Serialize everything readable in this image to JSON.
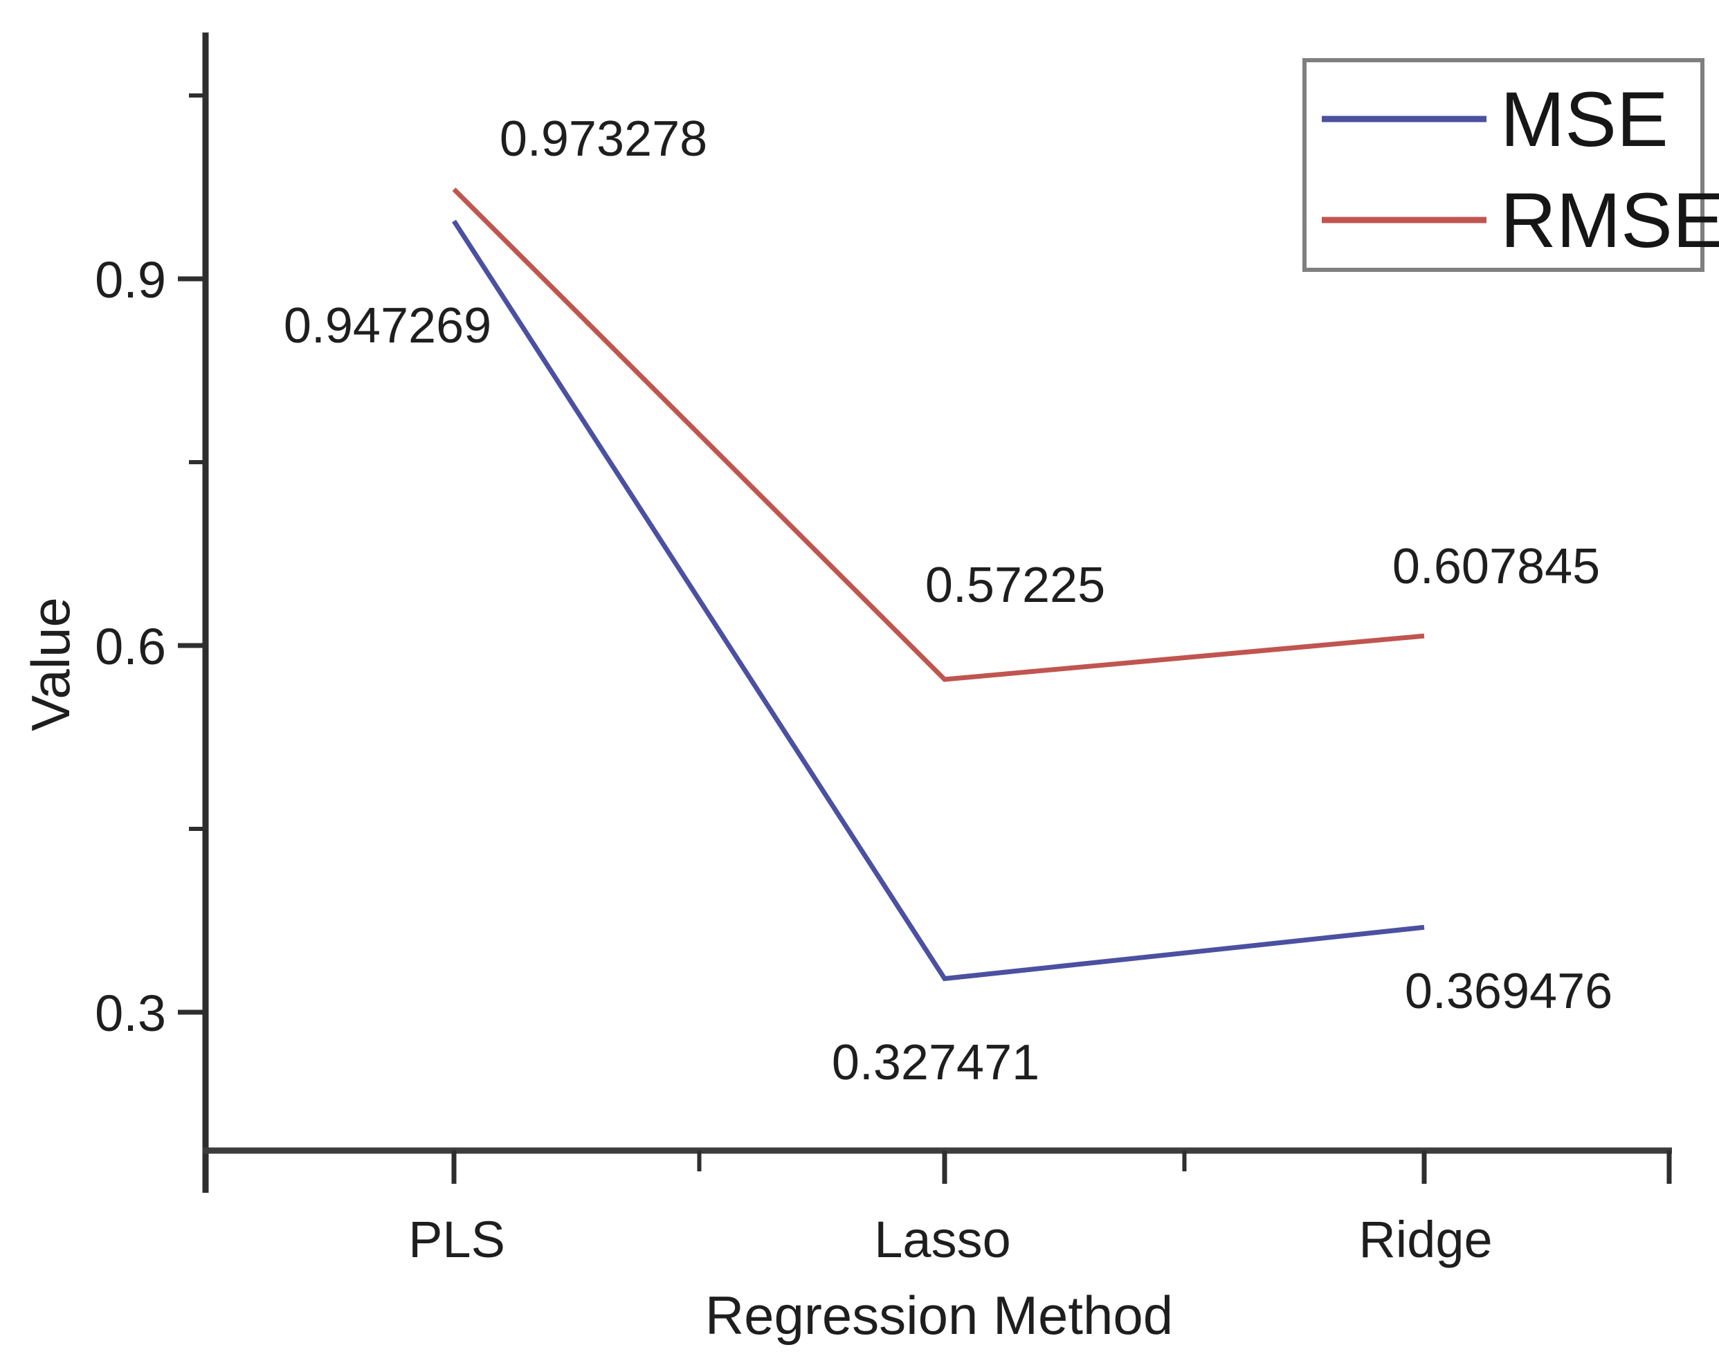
{
  "figure": {
    "background": "#ffffff",
    "axis_color": "#323232",
    "text_color": "#1e1e1e",
    "legend_border_color": "#7f7f7f"
  },
  "chart_data": {
    "type": "line",
    "title": "",
    "xlabel": "Regression Method",
    "ylabel": "Value",
    "categories": [
      "PLS",
      "Lasso",
      "Ridge"
    ],
    "series": [
      {
        "name": "MSE",
        "color": "#4b50a0",
        "values": [
          0.947269,
          0.327471,
          0.369476
        ],
        "labels": [
          "0.947269",
          "0.327471",
          "0.369476"
        ]
      },
      {
        "name": "RMSE",
        "color": "#c05550",
        "values": [
          0.973278,
          0.57225,
          0.607845
        ],
        "labels": [
          "0.973278",
          "0.57225",
          "0.607845"
        ]
      }
    ],
    "y_axis": {
      "ticks": [
        0.9,
        0.6,
        0.3
      ],
      "tick_labels": [
        "0.9",
        "0.6",
        "0.3"
      ],
      "minor_ticks": [
        1.05,
        0.75,
        0.45
      ],
      "range": [
        0.19,
        1.1
      ]
    },
    "x_axis": {
      "tick_marks": [
        "PLS",
        "Lasso",
        "Ridge"
      ]
    },
    "legend": {
      "position": "top-right",
      "entries": [
        "MSE",
        "RMSE"
      ]
    },
    "grid": false
  }
}
